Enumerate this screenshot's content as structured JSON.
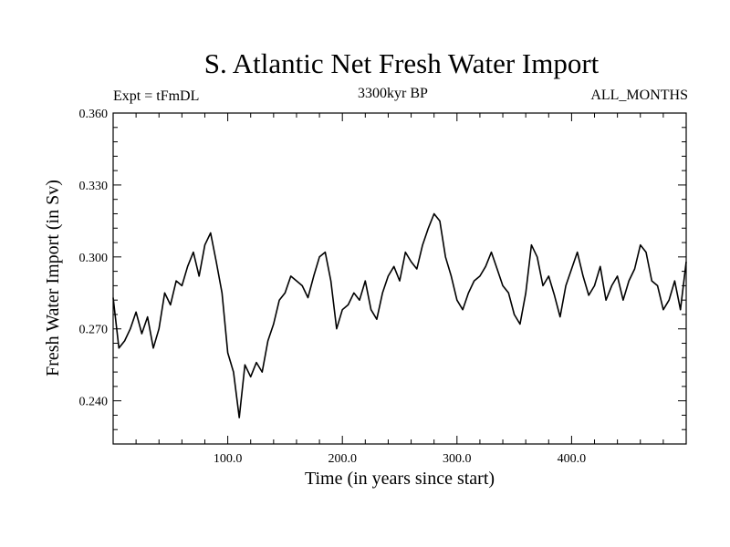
{
  "chart_data": {
    "type": "line",
    "title": "S. Atlantic Net Fresh Water Import",
    "subtitle_left": "Expt = tFmDL",
    "subtitle_center": "3300kyr BP",
    "subtitle_right": "ALL_MONTHS",
    "xlabel": "Time (in years since start)",
    "ylabel": "Fresh Water Import (in Sv)",
    "xlim": [
      0,
      500
    ],
    "ylim": [
      0.222,
      0.36
    ],
    "x_ticks": [
      100,
      200,
      300,
      400
    ],
    "x_tick_labels": [
      "100.0",
      "200.0",
      "300.0",
      "400.0"
    ],
    "y_ticks": [
      0.24,
      0.27,
      0.3,
      0.33,
      0.36
    ],
    "y_tick_labels": [
      "0.240",
      "0.270",
      "0.300",
      "0.330",
      "0.360"
    ],
    "series": [
      {
        "name": "Net Fresh Water Import",
        "x": [
          0,
          5,
          10,
          15,
          20,
          25,
          30,
          35,
          40,
          45,
          50,
          55,
          60,
          65,
          70,
          75,
          80,
          85,
          90,
          95,
          100,
          105,
          110,
          115,
          120,
          125,
          130,
          135,
          140,
          145,
          150,
          155,
          160,
          165,
          170,
          175,
          180,
          185,
          190,
          195,
          200,
          205,
          210,
          215,
          220,
          225,
          230,
          235,
          240,
          245,
          250,
          255,
          260,
          265,
          270,
          275,
          280,
          285,
          290,
          295,
          300,
          305,
          310,
          315,
          320,
          325,
          330,
          335,
          340,
          345,
          350,
          355,
          360,
          365,
          370,
          375,
          380,
          385,
          390,
          395,
          400,
          405,
          410,
          415,
          420,
          425,
          430,
          435,
          440,
          445,
          450,
          455,
          460,
          465,
          470,
          475,
          480,
          485,
          490,
          495,
          500
        ],
        "y": [
          0.283,
          0.262,
          0.265,
          0.27,
          0.277,
          0.268,
          0.275,
          0.262,
          0.27,
          0.285,
          0.28,
          0.29,
          0.288,
          0.296,
          0.302,
          0.292,
          0.305,
          0.31,
          0.298,
          0.285,
          0.26,
          0.252,
          0.233,
          0.255,
          0.25,
          0.256,
          0.252,
          0.265,
          0.272,
          0.282,
          0.285,
          0.292,
          0.29,
          0.288,
          0.283,
          0.292,
          0.3,
          0.302,
          0.29,
          0.27,
          0.278,
          0.28,
          0.285,
          0.282,
          0.29,
          0.278,
          0.274,
          0.285,
          0.292,
          0.296,
          0.29,
          0.302,
          0.298,
          0.295,
          0.305,
          0.312,
          0.318,
          0.315,
          0.3,
          0.292,
          0.282,
          0.278,
          0.285,
          0.29,
          0.292,
          0.296,
          0.302,
          0.295,
          0.288,
          0.285,
          0.276,
          0.272,
          0.285,
          0.305,
          0.3,
          0.288,
          0.292,
          0.284,
          0.275,
          0.288,
          0.295,
          0.302,
          0.292,
          0.284,
          0.288,
          0.296,
          0.282,
          0.288,
          0.292,
          0.282,
          0.29,
          0.295,
          0.305,
          0.302,
          0.29,
          0.288,
          0.278,
          0.282,
          0.29,
          0.278,
          0.298
        ]
      }
    ]
  }
}
